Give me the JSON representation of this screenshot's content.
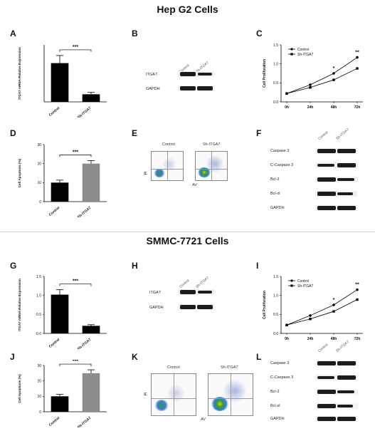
{
  "sections": [
    {
      "title": "Hep G2 Cells"
    },
    {
      "title": "SMMC-7721 Cells"
    }
  ],
  "panels": {
    "A": "A",
    "B": "B",
    "C": "C",
    "D": "D",
    "E": "E",
    "F": "F",
    "G": "G",
    "H": "H",
    "I": "I",
    "J": "J",
    "K": "K",
    "L": "L"
  },
  "western_b": {
    "lanes": [
      "Control",
      "Sh-ITGA7"
    ],
    "rows": [
      "ITGA7",
      "GAPDH"
    ]
  },
  "western_f": {
    "lanes": [
      "Control",
      "Sh-ITGA7"
    ],
    "rows": [
      "Caspase 3",
      "C-Caspase 3",
      "Bcl-2",
      "Bcl-xl",
      "GAPDH"
    ]
  },
  "flow": {
    "lanes": [
      "Control",
      "Sh-ITGA7"
    ],
    "xlabel": "AV",
    "ylabel": "PI"
  },
  "chart_data": [
    {
      "id": "A",
      "type": "bar",
      "categories": [
        "Control",
        "Sh-ITGA7"
      ],
      "values": [
        1.02,
        0.2
      ],
      "errors": [
        0.2,
        0.05
      ],
      "colors": [
        "#000000",
        "#000000"
      ],
      "ylabel": "ITGA7 mRNA Relative Expression",
      "ylim": [
        0,
        1.5
      ],
      "yticks": [],
      "sig": "***"
    },
    {
      "id": "C",
      "type": "line",
      "x": [
        "0h",
        "24h",
        "48h",
        "72h"
      ],
      "series": [
        {
          "name": "Control",
          "values": [
            0.22,
            0.45,
            0.75,
            1.17
          ],
          "marker": "circle"
        },
        {
          "name": "Sh-ITGA7",
          "values": [
            0.22,
            0.38,
            0.58,
            0.88
          ],
          "marker": "square"
        }
      ],
      "ylabel": "Cell Proliferation",
      "ylim": [
        0,
        1.5
      ],
      "yticks": [
        "0.0",
        "0.5",
        "1.0",
        "1.5"
      ],
      "annotations": [
        {
          "x": "48h",
          "text": "*"
        },
        {
          "x": "72h",
          "text": "**"
        }
      ]
    },
    {
      "id": "D",
      "type": "bar",
      "categories": [
        "Control",
        "Sh-ITGA7"
      ],
      "values": [
        10,
        20
      ],
      "errors": [
        1.3,
        1.6
      ],
      "colors": [
        "#000000",
        "#8c8c8c"
      ],
      "ylabel": "Cell Apoptosis (%)",
      "ylim": [
        0,
        30
      ],
      "yticks": [
        "0",
        "10",
        "20",
        "30"
      ],
      "sig": "***"
    },
    {
      "id": "G",
      "type": "bar",
      "categories": [
        "Control",
        "Sh-ITGA7"
      ],
      "values": [
        1.02,
        0.2
      ],
      "errors": [
        0.13,
        0.03
      ],
      "colors": [
        "#000000",
        "#000000"
      ],
      "ylabel": "ITGA7 mRNA Relative Expression",
      "ylim": [
        0,
        1.5
      ],
      "yticks": [
        "0.0",
        "0.5",
        "1.0",
        "1.5"
      ],
      "sig": "***"
    },
    {
      "id": "I",
      "type": "line",
      "x": [
        "0h",
        "24h",
        "48h",
        "72h"
      ],
      "series": [
        {
          "name": "Control",
          "values": [
            0.22,
            0.47,
            0.75,
            1.15
          ],
          "marker": "circle"
        },
        {
          "name": "Sh-ITGA7",
          "values": [
            0.22,
            0.38,
            0.58,
            0.89
          ],
          "marker": "square"
        }
      ],
      "ylabel": "Cell Proliferation",
      "ylim": [
        0,
        1.5
      ],
      "yticks": [
        "0.0",
        "0.5",
        "1.0",
        "1.5"
      ],
      "annotations": [
        {
          "x": "48h",
          "text": "*"
        },
        {
          "x": "72h",
          "text": "**"
        }
      ]
    },
    {
      "id": "J",
      "type": "bar",
      "categories": [
        "Control",
        "Sh-ITGA7"
      ],
      "values": [
        10,
        25
      ],
      "errors": [
        1.3,
        2.2
      ],
      "colors": [
        "#000000",
        "#8c8c8c"
      ],
      "ylabel": "Cell Apoptosis (%)",
      "ylim": [
        0,
        30
      ],
      "yticks": [
        "0",
        "10",
        "20",
        "30"
      ],
      "sig": "***"
    }
  ]
}
